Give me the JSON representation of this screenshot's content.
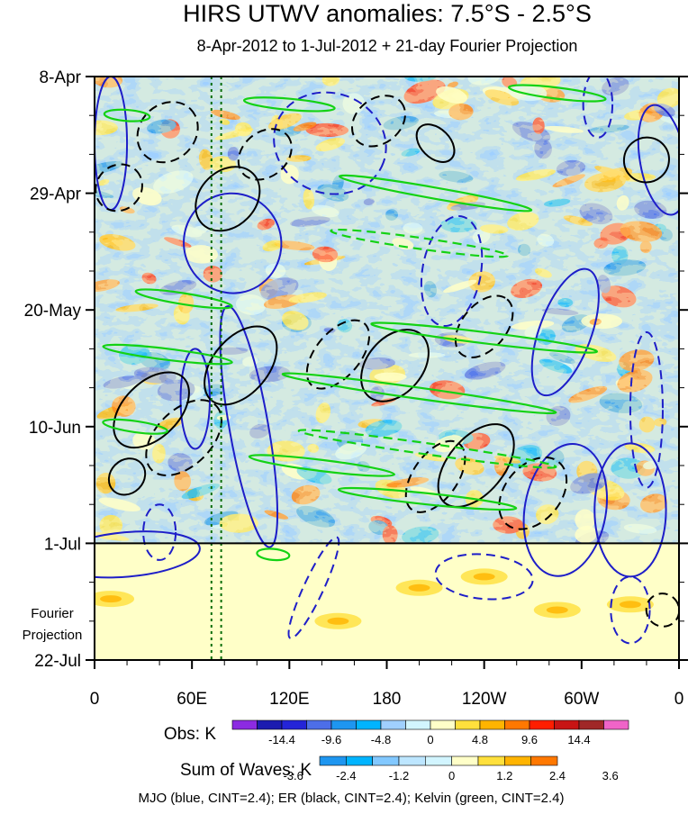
{
  "chart_data": {
    "type": "heatmap",
    "title": "HIRS UTWV anomalies: 7.5°S - 2.5°S",
    "subtitle": "8-Apr-2012 to 1-Jul-2012 + 21-day Fourier Projection",
    "x_ticks": [
      {
        "lon": 0,
        "label": "0"
      },
      {
        "lon": 60,
        "label": "60E"
      },
      {
        "lon": 120,
        "label": "120E"
      },
      {
        "lon": 180,
        "label": "180"
      },
      {
        "lon": 240,
        "label": "120W"
      },
      {
        "lon": 300,
        "label": "60W"
      },
      {
        "lon": 360,
        "label": "0"
      }
    ],
    "x_range": [
      0,
      360
    ],
    "time_range_days": [
      0,
      105
    ],
    "y_ticks": [
      {
        "day": 0,
        "label": "8-Apr"
      },
      {
        "day": 21,
        "label": "29-Apr"
      },
      {
        "day": 42,
        "label": "20-May"
      },
      {
        "day": 63,
        "label": "10-Jun"
      },
      {
        "day": 84,
        "label": "1-Jul"
      },
      {
        "day": 105,
        "label": "22-Jul"
      }
    ],
    "projection_start_day": 84,
    "projection_label_line1": "Fourier",
    "projection_label_line2": "Projection",
    "reference_longitudes": [
      72,
      78
    ],
    "obs_colorbar": {
      "label": "Obs: K",
      "tick_labels": [
        "-14.4",
        "-9.6",
        "-4.8",
        "0",
        "4.8",
        "9.6",
        "14.4"
      ],
      "colors": [
        "#8c2be2",
        "#1c1cb0",
        "#2424d8",
        "#4d6ee8",
        "#1e96f0",
        "#00b4ff",
        "#a0d0ff",
        "#d2f5ff",
        "#ffffc8",
        "#ffe03c",
        "#ffb400",
        "#ff7800",
        "#ff1e00",
        "#c81414",
        "#a02828",
        "#f064c8"
      ]
    },
    "waves_colorbar": {
      "label": "Sum of Waves: K",
      "tick_labels": [
        "-3.6",
        "-2.4",
        "-1.2",
        "0",
        "1.2",
        "2.4",
        "3.6"
      ],
      "colors": [
        "#1e96f0",
        "#00b4ff",
        "#82c8ff",
        "#bde6ff",
        "#d2f5ff",
        "#ffffc8",
        "#ffe03c",
        "#ffb400",
        "#ff7800"
      ]
    },
    "legend": "MJO (blue, CINT=2.4); ER (black, CINT=2.4); Kelvin (green, CINT=2.4)",
    "wave_colors": {
      "MJO": "#1e1ec8",
      "ER": "#000000",
      "Kelvin": "#14d214"
    },
    "mjo_contours": [
      {
        "lon": 10,
        "day": 12,
        "dlon": 10,
        "dday": 12,
        "tilt": 0,
        "sign": 1
      },
      {
        "lon": 85,
        "day": 30,
        "dlon": 30,
        "dday": 9,
        "tilt": -15,
        "sign": 1
      },
      {
        "lon": 145,
        "day": 12,
        "dlon": 35,
        "dday": 9,
        "tilt": 20,
        "sign": -1
      },
      {
        "lon": 62,
        "day": 58,
        "dlon": 9,
        "dday": 9,
        "tilt": 0,
        "sign": 1
      },
      {
        "lon": 95,
        "day": 63,
        "dlon": 12,
        "dday": 22,
        "tilt": -10,
        "sign": 1
      },
      {
        "lon": 20,
        "day": 86,
        "dlon": 45,
        "dday": 4,
        "tilt": -5,
        "sign": 1
      },
      {
        "lon": 290,
        "day": 46,
        "dlon": 16,
        "dday": 12,
        "tilt": 20,
        "sign": 1
      },
      {
        "lon": 220,
        "day": 35,
        "dlon": 18,
        "dday": 10,
        "tilt": 10,
        "sign": -1
      },
      {
        "lon": 350,
        "day": 15,
        "dlon": 14,
        "dday": 10,
        "tilt": -10,
        "sign": 1
      },
      {
        "lon": 340,
        "day": 60,
        "dlon": 10,
        "dday": 14,
        "tilt": 0,
        "sign": -1
      },
      {
        "lon": 330,
        "day": 78,
        "dlon": 22,
        "dday": 12,
        "tilt": 0,
        "sign": 1
      },
      {
        "lon": 290,
        "day": 78,
        "dlon": 25,
        "dday": 12,
        "tilt": 10,
        "sign": 1
      },
      {
        "lon": 240,
        "day": 90,
        "dlon": 30,
        "dday": 4,
        "tilt": 5,
        "sign": -1
      },
      {
        "lon": 310,
        "day": 5,
        "dlon": 9,
        "dday": 6,
        "tilt": 0,
        "sign": -1
      },
      {
        "lon": 135,
        "day": 92,
        "dlon": 6,
        "dday": 10,
        "tilt": 25,
        "sign": -1
      },
      {
        "lon": 330,
        "day": 96,
        "dlon": 12,
        "dday": 6,
        "tilt": 0,
        "sign": -1
      },
      {
        "lon": 40,
        "day": 82,
        "dlon": 10,
        "dday": 5,
        "tilt": 0,
        "sign": -1
      }
    ],
    "er_contours": [
      {
        "lon": 45,
        "day": 10,
        "dlon": 20,
        "dday": 5,
        "tilt": -45,
        "sign": -1
      },
      {
        "lon": 82,
        "day": 22,
        "dlon": 22,
        "dday": 5,
        "tilt": -45,
        "sign": 1
      },
      {
        "lon": 105,
        "day": 14,
        "dlon": 18,
        "dday": 4,
        "tilt": -40,
        "sign": -1
      },
      {
        "lon": 175,
        "day": 8,
        "dlon": 18,
        "dday": 4,
        "tilt": -40,
        "sign": -1
      },
      {
        "lon": 210,
        "day": 12,
        "dlon": 9,
        "dday": 4,
        "tilt": -45,
        "sign": 1
      },
      {
        "lon": 15,
        "day": 20,
        "dlon": 15,
        "dday": 4,
        "tilt": -45,
        "sign": -1
      },
      {
        "lon": 35,
        "day": 60,
        "dlon": 28,
        "dday": 5,
        "tilt": -45,
        "sign": 1
      },
      {
        "lon": 90,
        "day": 52,
        "dlon": 28,
        "dday": 5,
        "tilt": -50,
        "sign": 1
      },
      {
        "lon": 150,
        "day": 50,
        "dlon": 25,
        "dday": 4,
        "tilt": -50,
        "sign": -1
      },
      {
        "lon": 185,
        "day": 52,
        "dlon": 25,
        "dday": 5,
        "tilt": -50,
        "sign": 1
      },
      {
        "lon": 240,
        "day": 45,
        "dlon": 22,
        "dday": 4,
        "tilt": -50,
        "sign": -1
      },
      {
        "lon": 55,
        "day": 65,
        "dlon": 28,
        "dday": 5,
        "tilt": -45,
        "sign": -1
      },
      {
        "lon": 235,
        "day": 70,
        "dlon": 30,
        "dday": 5,
        "tilt": -50,
        "sign": 1
      },
      {
        "lon": 210,
        "day": 72,
        "dlon": 25,
        "dday": 4,
        "tilt": -55,
        "sign": -1
      },
      {
        "lon": 270,
        "day": 75,
        "dlon": 25,
        "dday": 5,
        "tilt": -50,
        "sign": -1
      },
      {
        "lon": 350,
        "day": 96,
        "dlon": 10,
        "dday": 3,
        "tilt": -45,
        "sign": -1
      },
      {
        "lon": 340,
        "day": 15,
        "dlon": 14,
        "dday": 4,
        "tilt": -40,
        "sign": 1
      },
      {
        "lon": 20,
        "day": 72,
        "dlon": 12,
        "dday": 3,
        "tilt": -45,
        "sign": 1
      }
    ],
    "kelvin_contours": [
      {
        "lon": 20,
        "day": 7,
        "dlon": 14,
        "dday": 1,
        "tilt": 4,
        "sign": 1
      },
      {
        "lon": 210,
        "day": 21,
        "dlon": 60,
        "dday": 1,
        "tilt": 10,
        "sign": 1
      },
      {
        "lon": 200,
        "day": 30,
        "dlon": 55,
        "dday": 1,
        "tilt": 8,
        "sign": -1
      },
      {
        "lon": 55,
        "day": 40,
        "dlon": 30,
        "dday": 1,
        "tilt": 9,
        "sign": 1
      },
      {
        "lon": 45,
        "day": 50,
        "dlon": 40,
        "dday": 1,
        "tilt": 7,
        "sign": 1
      },
      {
        "lon": 240,
        "day": 47,
        "dlon": 70,
        "dday": 1,
        "tilt": 7,
        "sign": 1
      },
      {
        "lon": 200,
        "day": 57,
        "dlon": 85,
        "dday": 1,
        "tilt": 8,
        "sign": 1
      },
      {
        "lon": 205,
        "day": 67,
        "dlon": 80,
        "dday": 1,
        "tilt": 8,
        "sign": -1
      },
      {
        "lon": 140,
        "day": 70,
        "dlon": 45,
        "dday": 1,
        "tilt": 7,
        "sign": 1
      },
      {
        "lon": 205,
        "day": 76,
        "dlon": 55,
        "dday": 1,
        "tilt": 6,
        "sign": 1
      },
      {
        "lon": 120,
        "day": 5,
        "dlon": 28,
        "dday": 1,
        "tilt": 5,
        "sign": 1
      },
      {
        "lon": 285,
        "day": 3,
        "dlon": 30,
        "dday": 1,
        "tilt": 7,
        "sign": 1
      },
      {
        "lon": 25,
        "day": 63,
        "dlon": 20,
        "dday": 1,
        "tilt": 8,
        "sign": 1
      },
      {
        "lon": 110,
        "day": 86,
        "dlon": 10,
        "dday": 1,
        "tilt": 5,
        "sign": 1
      }
    ]
  }
}
